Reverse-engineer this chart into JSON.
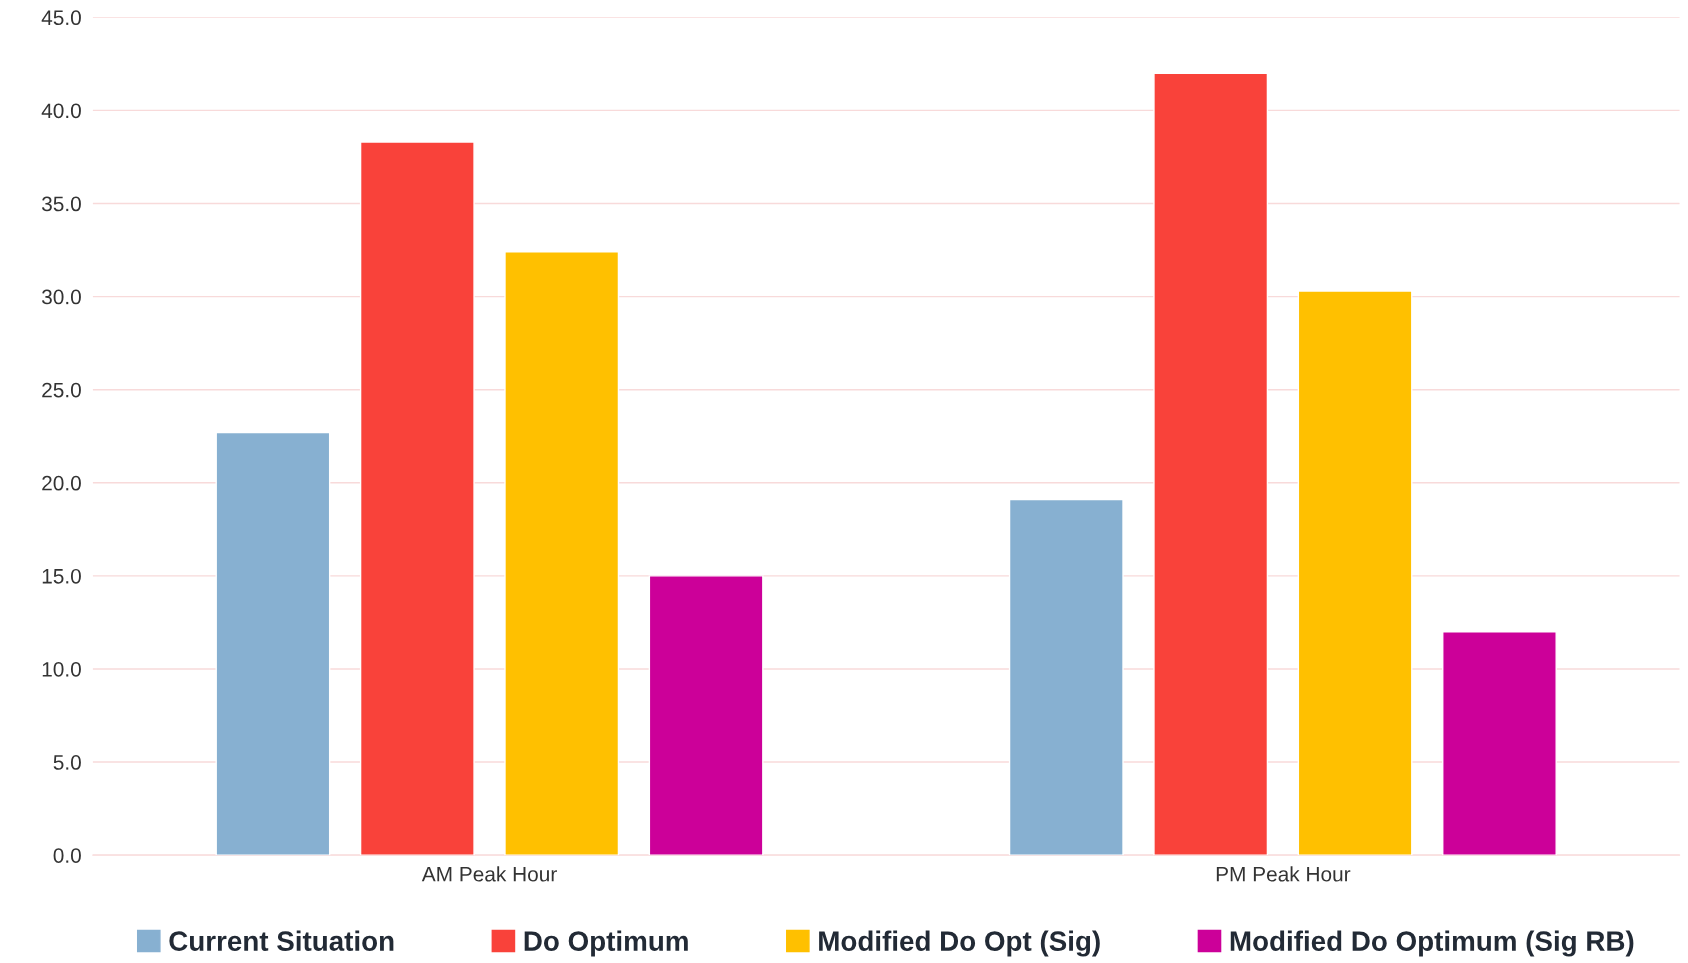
{
  "chart_data": {
    "type": "bar",
    "categories": [
      "AM Peak Hour",
      "PM Peak Hour"
    ],
    "series": [
      {
        "name": "Current Situation",
        "color": "#87b0d1",
        "values": [
          22.7,
          19.1
        ]
      },
      {
        "name": "Do Optimum",
        "color": "#f9423a",
        "values": [
          38.3,
          42.0
        ]
      },
      {
        "name": "Modified Do Opt (Sig)",
        "color": "#ffc000",
        "values": [
          32.4,
          30.3
        ]
      },
      {
        "name": "Modified Do Optimum (Sig RB)",
        "color": "#cc0099",
        "values": [
          15.0,
          12.0
        ]
      }
    ],
    "ylim": [
      0,
      45
    ],
    "yticks": [
      {
        "value": 0,
        "label": "0.0"
      },
      {
        "value": 5,
        "label": "5.0"
      },
      {
        "value": 10,
        "label": "10.0"
      },
      {
        "value": 15,
        "label": "15.0"
      },
      {
        "value": 20,
        "label": "20.0"
      },
      {
        "value": 25,
        "label": "25.0"
      },
      {
        "value": 30,
        "label": "30.0"
      },
      {
        "value": 35,
        "label": "35.0"
      },
      {
        "value": 40,
        "label": "40.0"
      },
      {
        "value": 45,
        "label": "45.0"
      }
    ],
    "grid": "y",
    "legend": "bottom"
  }
}
